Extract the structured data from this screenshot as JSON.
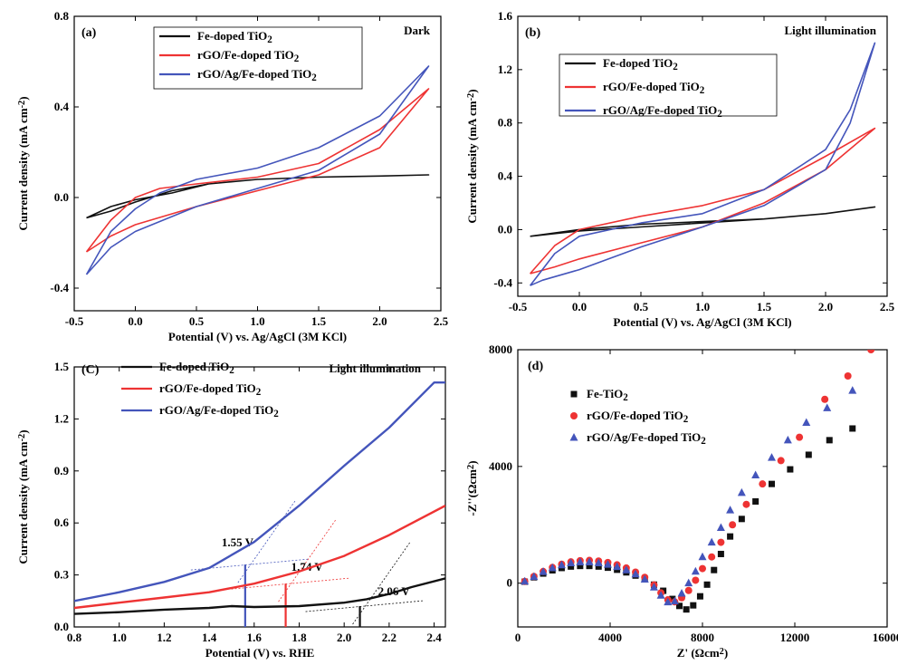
{
  "figure": {
    "colors": {
      "black": "#111111",
      "red": "#ee3333",
      "blue": "#4455bb"
    }
  },
  "chart_data": [
    {
      "panel": "(a)",
      "type": "line",
      "condition": "Dark",
      "xlabel": "Potential (V) vs. Ag/AgCl (3M KCl)",
      "ylabel": "Current density (mA cm^-2)",
      "xlim": [
        -0.5,
        2.5
      ],
      "ylim": [
        -0.5,
        0.8
      ],
      "xticks": [
        -0.5,
        0.0,
        0.5,
        1.0,
        1.5,
        2.0,
        2.5
      ],
      "xtick_labels": [
        "-0.5",
        "0.0",
        "0.5",
        "1.0",
        "1.5",
        "2.0",
        "2.5"
      ],
      "yticks": [
        -0.4,
        0.0,
        0.4,
        0.8
      ],
      "ytick_labels": [
        "-0.4",
        "0.0",
        "0.4",
        "0.8"
      ],
      "legend_position": "top-center",
      "series": [
        {
          "name": "Fe-doped TiO2",
          "color": "black",
          "x": [
            -0.4,
            -0.2,
            0.0,
            0.3,
            0.6,
            1.0,
            1.5,
            2.0,
            2.4,
            2.0,
            1.5,
            1.0,
            0.6,
            0.3,
            0.0,
            -0.2,
            -0.4
          ],
          "y": [
            -0.09,
            -0.06,
            -0.02,
            0.03,
            0.06,
            0.08,
            0.09,
            0.095,
            0.1,
            0.095,
            0.09,
            0.08,
            0.06,
            0.02,
            -0.01,
            -0.04,
            -0.09
          ]
        },
        {
          "name": "rGO/Fe-doped TiO2",
          "color": "red",
          "x": [
            -0.4,
            -0.2,
            0.0,
            0.5,
            1.0,
            1.5,
            2.0,
            2.4,
            2.0,
            1.5,
            1.0,
            0.5,
            0.2,
            0.0,
            -0.2,
            -0.4
          ],
          "y": [
            -0.24,
            -0.17,
            -0.12,
            -0.04,
            0.03,
            0.1,
            0.22,
            0.48,
            0.3,
            0.15,
            0.09,
            0.06,
            0.04,
            0.0,
            -0.1,
            -0.24
          ]
        },
        {
          "name": "rGO/Ag/Fe-doped TiO2",
          "color": "blue",
          "x": [
            -0.4,
            -0.2,
            0.0,
            0.5,
            1.0,
            1.5,
            2.0,
            2.4,
            2.0,
            1.5,
            1.0,
            0.5,
            0.2,
            0.0,
            -0.2,
            -0.4
          ],
          "y": [
            -0.34,
            -0.22,
            -0.15,
            -0.04,
            0.04,
            0.12,
            0.28,
            0.58,
            0.36,
            0.22,
            0.13,
            0.08,
            0.02,
            -0.05,
            -0.15,
            -0.34
          ]
        }
      ]
    },
    {
      "panel": "(b)",
      "type": "line",
      "condition": "Light illumination",
      "xlabel": "Potential (V) vs. Ag/AgCl (3M KCl)",
      "ylabel": "Current density (mA cm^-2)",
      "xlim": [
        -0.5,
        2.5
      ],
      "ylim": [
        -0.5,
        1.6
      ],
      "xticks": [
        -0.5,
        0.0,
        0.5,
        1.0,
        1.5,
        2.0,
        2.5
      ],
      "xtick_labels": [
        "-0.5",
        "0.0",
        "0.5",
        "1.0",
        "1.5",
        "2.0",
        "2.5"
      ],
      "yticks": [
        -0.4,
        0.0,
        0.4,
        0.8,
        1.2,
        1.6
      ],
      "ytick_labels": [
        "-0.4",
        "0.0",
        "0.4",
        "0.8",
        "1.2",
        "1.6"
      ],
      "legend_position": "top-center",
      "series": [
        {
          "name": "Fe-doped TiO2",
          "color": "black",
          "x": [
            -0.4,
            0.0,
            0.5,
            1.0,
            1.5,
            2.0,
            2.4,
            2.0,
            1.5,
            1.0,
            0.5,
            0.0,
            -0.4
          ],
          "y": [
            -0.05,
            -0.01,
            0.02,
            0.05,
            0.08,
            0.12,
            0.17,
            0.12,
            0.08,
            0.06,
            0.04,
            0.0,
            -0.05
          ]
        },
        {
          "name": "rGO/Fe-doped TiO2",
          "color": "red",
          "x": [
            -0.4,
            -0.2,
            0.0,
            0.5,
            1.0,
            1.5,
            2.0,
            2.4,
            2.0,
            1.5,
            1.0,
            0.5,
            0.0,
            -0.2,
            -0.4
          ],
          "y": [
            -0.33,
            -0.28,
            -0.22,
            -0.1,
            0.02,
            0.2,
            0.45,
            0.76,
            0.55,
            0.3,
            0.18,
            0.1,
            0.0,
            -0.12,
            -0.33
          ]
        },
        {
          "name": "rGO/Ag/Fe-doped TiO2",
          "color": "blue",
          "x": [
            -0.4,
            -0.3,
            0.0,
            0.5,
            1.0,
            1.5,
            2.0,
            2.2,
            2.4,
            2.2,
            2.0,
            1.5,
            1.0,
            0.5,
            0.0,
            -0.2,
            -0.4
          ],
          "y": [
            -0.42,
            -0.38,
            -0.3,
            -0.13,
            0.02,
            0.18,
            0.45,
            0.8,
            1.4,
            0.9,
            0.6,
            0.3,
            0.12,
            0.05,
            -0.05,
            -0.18,
            -0.42
          ]
        }
      ]
    },
    {
      "panel": "(C)",
      "type": "line",
      "condition": "Light illumination",
      "xlabel": "Potential (V) vs. RHE",
      "ylabel": "Current density (mA cm^-2)",
      "xlim": [
        0.8,
        2.45
      ],
      "ylim": [
        0.0,
        1.5
      ],
      "xticks": [
        0.8,
        1.0,
        1.2,
        1.4,
        1.6,
        1.8,
        2.0,
        2.2,
        2.4
      ],
      "xtick_labels": [
        "0.8",
        "1.0",
        "1.2",
        "1.4",
        "1.6",
        "1.8",
        "2.0",
        "2.2",
        "2.4"
      ],
      "yticks": [
        0.0,
        0.3,
        0.6,
        0.9,
        1.2,
        1.5
      ],
      "ytick_labels": [
        "0.0",
        "0.3",
        "0.6",
        "0.9",
        "1.2",
        "1.5"
      ],
      "legend_position": "top-left",
      "series": [
        {
          "name": "Fe-doped TiO2",
          "color": "black",
          "x": [
            0.8,
            1.0,
            1.2,
            1.4,
            1.5,
            1.6,
            1.8,
            2.0,
            2.1,
            2.2,
            2.3,
            2.45
          ],
          "y": [
            0.075,
            0.085,
            0.1,
            0.11,
            0.12,
            0.115,
            0.12,
            0.14,
            0.16,
            0.19,
            0.23,
            0.28
          ]
        },
        {
          "name": "rGO/Fe-doped TiO2",
          "color": "red",
          "x": [
            0.8,
            1.0,
            1.2,
            1.4,
            1.6,
            1.8,
            2.0,
            2.2,
            2.45
          ],
          "y": [
            0.11,
            0.14,
            0.17,
            0.2,
            0.25,
            0.32,
            0.41,
            0.53,
            0.7
          ]
        },
        {
          "name": "rGO/Ag/Fe-doped TiO2",
          "color": "blue",
          "x": [
            0.8,
            1.0,
            1.2,
            1.4,
            1.6,
            1.8,
            2.0,
            2.2,
            2.4,
            2.45
          ],
          "y": [
            0.15,
            0.2,
            0.26,
            0.34,
            0.49,
            0.7,
            0.93,
            1.15,
            1.41,
            1.41
          ]
        }
      ],
      "onset_annotations": [
        {
          "label": "1.55 V",
          "x": 1.56,
          "color": "blue",
          "y_top": 0.36
        },
        {
          "label": "1.74 V",
          "x": 1.74,
          "color": "red",
          "y_top": 0.25
        },
        {
          "label": "2.06 V",
          "x": 2.07,
          "color": "black",
          "y_top": 0.12
        }
      ]
    },
    {
      "panel": "(d)",
      "type": "scatter",
      "xlabel": "Z' (Ωcm^2)",
      "ylabel": "-Z''(Ωcm^2)",
      "xlim": [
        0,
        16000
      ],
      "ylim": [
        -1500,
        8000
      ],
      "xticks": [
        0,
        4000,
        8000,
        12000,
        16000
      ],
      "xtick_labels": [
        "0",
        "4000",
        "8000",
        "12000",
        "16000"
      ],
      "yticks": [
        0,
        4000,
        8000
      ],
      "ytick_labels": [
        "0",
        "4000",
        "8000"
      ],
      "legend_position": "top-left",
      "series": [
        {
          "name": "Fe-TiO2",
          "color": "black",
          "marker": "square",
          "x": [
            300,
            700,
            1100,
            1500,
            1900,
            2300,
            2700,
            3100,
            3500,
            3900,
            4300,
            4700,
            5100,
            5500,
            5900,
            6300,
            6700,
            7000,
            7300,
            7600,
            7900,
            8200,
            8500,
            8800,
            9200,
            9700,
            10300,
            11000,
            11800,
            12600,
            13500,
            14500
          ],
          "y": [
            50,
            200,
            330,
            440,
            520,
            570,
            590,
            590,
            570,
            530,
            460,
            370,
            260,
            130,
            -50,
            -260,
            -540,
            -780,
            -900,
            -760,
            -450,
            -50,
            450,
            1000,
            1600,
            2200,
            2800,
            3400,
            3900,
            4400,
            4900,
            5300
          ]
        },
        {
          "name": "rGO/Fe-doped TiO2",
          "color": "red",
          "marker": "circle",
          "x": [
            300,
            700,
            1100,
            1500,
            1900,
            2300,
            2700,
            3100,
            3500,
            3900,
            4300,
            4700,
            5100,
            5500,
            5900,
            6200,
            6500,
            6800,
            7100,
            7400,
            7700,
            8000,
            8400,
            8800,
            9300,
            9900,
            10600,
            11400,
            12200,
            13300,
            14300,
            15300
          ],
          "y": [
            60,
            230,
            400,
            540,
            650,
            730,
            770,
            780,
            760,
            710,
            630,
            520,
            380,
            200,
            -60,
            -330,
            -570,
            -640,
            -500,
            -250,
            100,
            500,
            900,
            1400,
            2000,
            2700,
            3400,
            4200,
            5000,
            6300,
            7100,
            8000
          ]
        },
        {
          "name": "rGO/Ag/Fe-doped TiO2",
          "color": "blue",
          "marker": "triangle",
          "x": [
            300,
            700,
            1100,
            1500,
            1900,
            2300,
            2700,
            3100,
            3500,
            3900,
            4300,
            4700,
            5100,
            5500,
            5900,
            6200,
            6500,
            6800,
            7100,
            7400,
            7700,
            8000,
            8400,
            8800,
            9200,
            9700,
            10300,
            11000,
            11700,
            12500,
            13400,
            14500
          ],
          "y": [
            60,
            220,
            390,
            520,
            620,
            690,
            720,
            720,
            690,
            640,
            560,
            450,
            310,
            130,
            -140,
            -420,
            -650,
            -620,
            -350,
            0,
            400,
            900,
            1400,
            1900,
            2500,
            3100,
            3700,
            4300,
            4900,
            5500,
            6000,
            6600
          ]
        }
      ]
    }
  ]
}
